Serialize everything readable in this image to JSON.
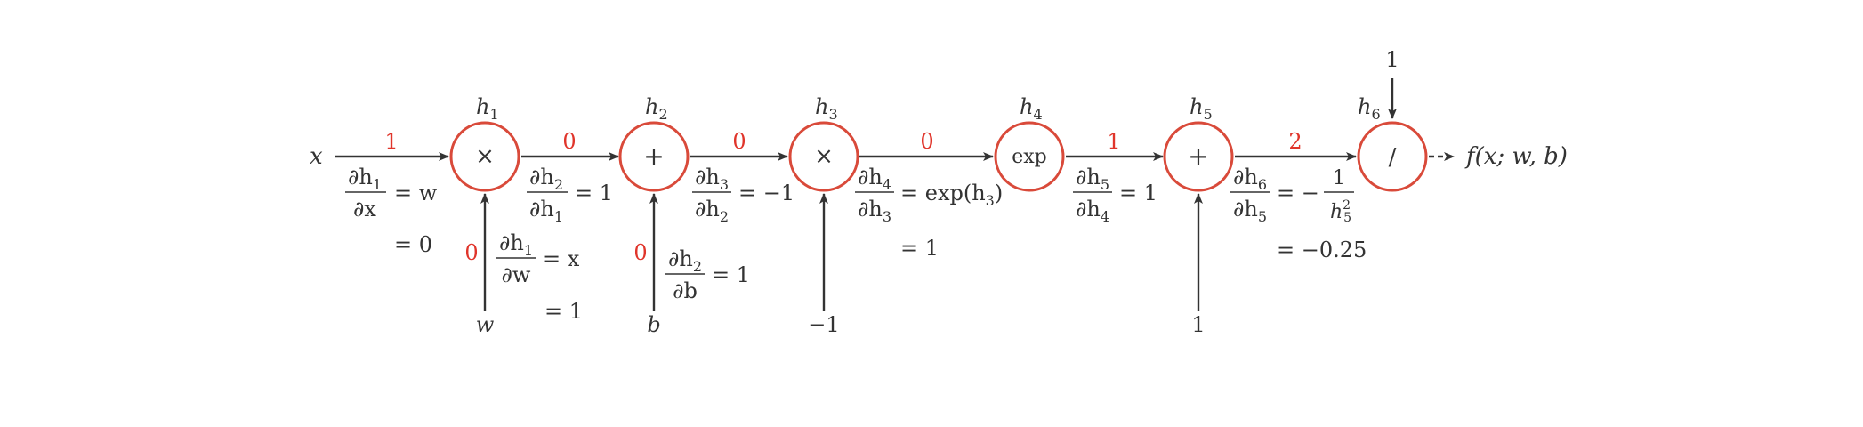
{
  "colors": {
    "node_stroke": "#d94a3a",
    "gradient_text": "#e0352b",
    "ink": "#333333"
  },
  "nodes": {
    "h1": {
      "label": "h",
      "sub": "1",
      "op": "×"
    },
    "h2": {
      "label": "h",
      "sub": "2",
      "op": "+"
    },
    "h3": {
      "label": "h",
      "sub": "3",
      "op": "×"
    },
    "h4": {
      "label": "h",
      "sub": "4",
      "op": "exp"
    },
    "h5": {
      "label": "h",
      "sub": "5",
      "op": "+"
    },
    "h6": {
      "label": "h",
      "sub": "6",
      "op": "/"
    }
  },
  "inputs": {
    "x": "x",
    "w": "w",
    "b": "b",
    "neg_one": "−1",
    "one_bottom": "1",
    "one_top": "1"
  },
  "output": "f(x; w, b)",
  "gradients": {
    "x_h1": "1",
    "h1_h2": "0",
    "h2_h3": "0",
    "h3_h4": "0",
    "h4_h5": "1",
    "h5_h6": "2",
    "w_h1": "0",
    "b_h2": "0"
  },
  "derivatives": {
    "dh1_dx": {
      "num": "∂h",
      "num_sub": "1",
      "den": "∂x",
      "rhs": "= w",
      "value": "= 0"
    },
    "dh1_dw": {
      "num": "∂h",
      "num_sub": "1",
      "den": "∂w",
      "rhs": "= x",
      "value": "= 1"
    },
    "dh2_dh1": {
      "num": "∂h",
      "num_sub": "2",
      "den": "∂h",
      "den_sub": "1",
      "rhs": "= 1"
    },
    "dh2_db": {
      "num": "∂h",
      "num_sub": "2",
      "den": "∂b",
      "rhs": "= 1"
    },
    "dh3_dh2": {
      "num": "∂h",
      "num_sub": "3",
      "den": "∂h",
      "den_sub": "2",
      "rhs": "= −1"
    },
    "dh4_dh3": {
      "num": "∂h",
      "num_sub": "4",
      "den": "∂h",
      "den_sub": "3",
      "rhs": "= exp(h",
      "rhs_sub": "3",
      "rhs_end": ")",
      "value": "= 1"
    },
    "dh5_dh4": {
      "num": "∂h",
      "num_sub": "5",
      "den": "∂h",
      "den_sub": "4",
      "rhs": "= 1"
    },
    "dh6_dh5": {
      "num": "∂h",
      "num_sub": "6",
      "den": "∂h",
      "den_sub": "5",
      "rhs": "= −",
      "frac_num": "1",
      "frac_den": "h",
      "frac_den_sub": "5",
      "frac_den_sup": "2",
      "value": "= −0.25"
    }
  }
}
